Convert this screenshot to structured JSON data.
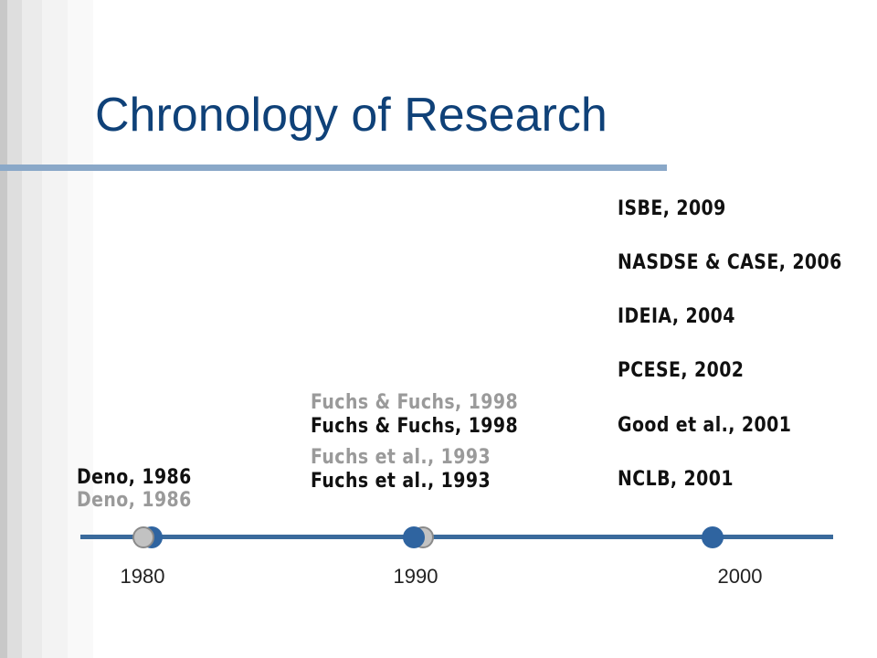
{
  "title": "Chronology of Research",
  "axis": {
    "ticks": [
      "1980",
      "1990",
      "2000"
    ]
  },
  "events": {
    "deno": "Deno, 1986",
    "fuchs1998": "Fuchs & Fuchs, 1998",
    "fuchs1993": "Fuchs et al., 1993",
    "decade2000": [
      "ISBE, 2009",
      "NASDSE & CASE, 2006",
      "IDEIA, 2004",
      "PCESE, 2002",
      "Good et al., 2001",
      "NCLB, 2001"
    ]
  },
  "colors": {
    "title": "#0f4178",
    "axis": "#3a6a9c",
    "marker": "#2f64a0",
    "ghost": "#9a9a9a",
    "rule": "#8aa8c8"
  }
}
